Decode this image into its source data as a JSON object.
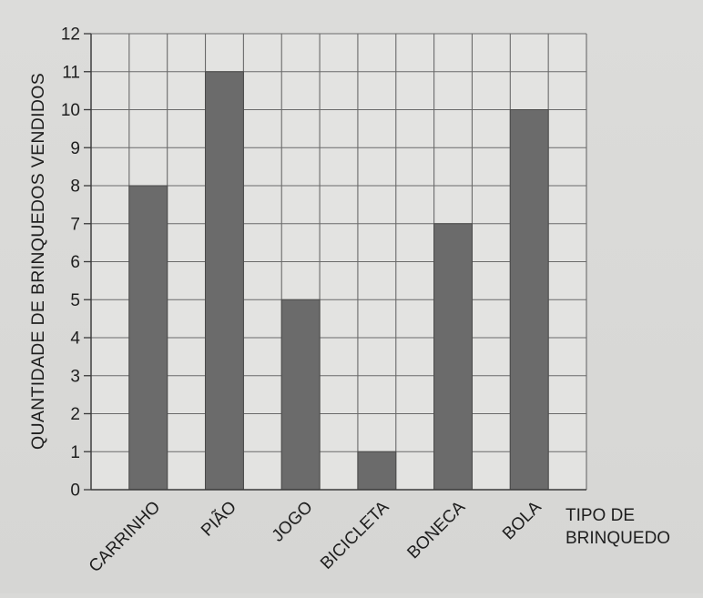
{
  "chart_data": {
    "type": "bar",
    "categories": [
      "CARRINHO",
      "PIÃO",
      "JOGO",
      "BICICLETA",
      "BONECA",
      "BOLA"
    ],
    "values": [
      8,
      11,
      5,
      1,
      7,
      10
    ],
    "ylabel": "QUANTIDADE DE BRINQUEDOS VENDIDOS",
    "xlabel_line1": "TIPO DE",
    "xlabel_line2": "BRINQUEDO",
    "ylim": [
      0,
      12
    ],
    "yticks": [
      0,
      1,
      2,
      3,
      4,
      5,
      6,
      7,
      8,
      9,
      10,
      11,
      12
    ],
    "grid": true,
    "bar_color": "#6b6b6b",
    "grid_color": "#6a6a6a",
    "background_color": "#e3e3e1"
  }
}
